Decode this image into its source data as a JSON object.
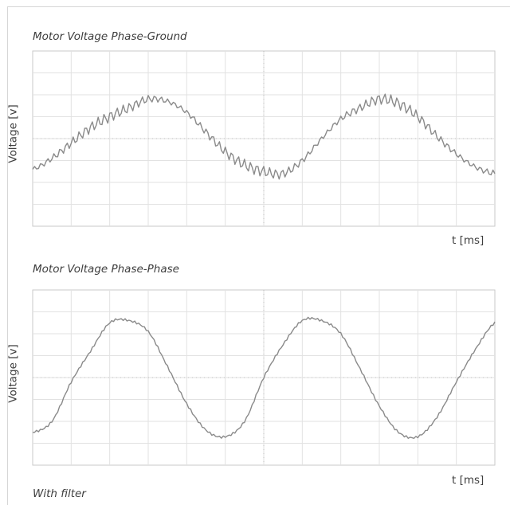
{
  "chart_data": [
    {
      "type": "line",
      "title": "Motor Voltage Phase-Ground",
      "xlabel": "t [ms]",
      "ylabel": "Voltage [v]",
      "grid": true,
      "grid_divisions": {
        "x": 12,
        "y": 8
      },
      "ylim": [
        -4,
        4
      ],
      "series": [
        {
          "x": [
            0,
            0.5,
            1,
            1.5,
            2,
            2.5,
            3,
            3.5,
            4,
            4.5,
            5,
            5.5,
            6,
            6.5,
            7,
            7.5,
            8,
            8.5,
            9,
            9.5,
            10,
            10.5,
            11,
            11.5,
            12
          ],
          "values": [
            -1.4,
            -0.9,
            -0.2,
            0.5,
            1.0,
            1.4,
            1.8,
            1.7,
            1.2,
            0.3,
            -0.6,
            -1.2,
            -1.5,
            -1.6,
            -1.0,
            0.0,
            0.9,
            1.4,
            1.8,
            1.6,
            1.0,
            0.1,
            -0.7,
            -1.3,
            -1.6
          ]
        }
      ]
    },
    {
      "type": "line",
      "title": "Motor Voltage Phase-Phase",
      "xlabel": "t [ms]",
      "ylabel": "Voltage [v]",
      "grid": true,
      "grid_divisions": {
        "x": 12,
        "y": 8
      },
      "ylim": [
        -4,
        4
      ],
      "series": [
        {
          "x": [
            0,
            0.5,
            1,
            1.5,
            2,
            2.5,
            3,
            3.5,
            4,
            4.5,
            5,
            5.5,
            6,
            6.5,
            7,
            7.5,
            8,
            8.5,
            9,
            9.5,
            10,
            10.5,
            11,
            11.5,
            12
          ],
          "values": [
            -2.5,
            -2.0,
            -0.2,
            1.2,
            2.5,
            2.6,
            2.1,
            0.5,
            -1.2,
            -2.4,
            -2.7,
            -2.0,
            0.0,
            1.5,
            2.6,
            2.6,
            2.0,
            0.4,
            -1.3,
            -2.5,
            -2.7,
            -1.8,
            -0.2,
            1.3,
            2.5
          ]
        }
      ]
    }
  ],
  "footnote": "With filter"
}
